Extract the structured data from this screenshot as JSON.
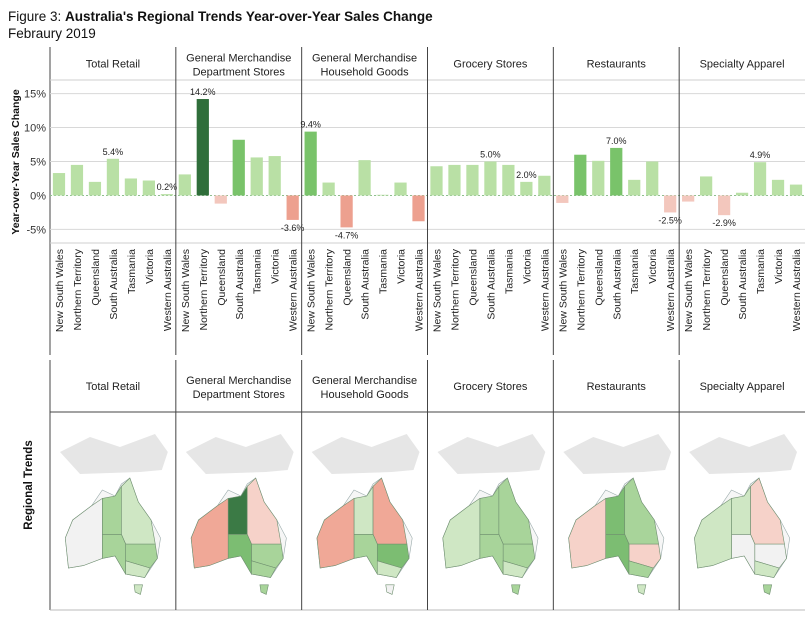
{
  "title": {
    "prefix": "Figure 3:",
    "main": "Australia's Regional Trends Year-over-Year Sales Change",
    "subtitle": "Febraury 2019"
  },
  "colors": {
    "positive_light": "#b9e0a5",
    "positive_mid": "#79c36a",
    "positive_dark": "#2f6e3a",
    "negative_light": "#f3c7bd",
    "negative_mid": "#eda08f",
    "neutral": "#f0f0f0",
    "map_background": "#e6e6e6",
    "grid": "#d8d8d8"
  },
  "chart_data": {
    "type": "bar",
    "ylabel": "Year-over-Year Sales Change",
    "ylim": [
      -7,
      17
    ],
    "yticks": [
      -5,
      0,
      5,
      10,
      15
    ],
    "ytick_labels": [
      "-5%",
      "0%",
      "5%",
      "10%",
      "15%"
    ],
    "categories": [
      "New South Wales",
      "Northern Territory",
      "Queensland",
      "South Australia",
      "Tasmania",
      "Victoria",
      "Western Australia"
    ],
    "panels": [
      {
        "name": "Total Retail",
        "values": [
          3.3,
          4.5,
          2.0,
          5.4,
          2.5,
          2.2,
          0.2
        ],
        "labels": [
          "",
          "",
          "",
          "5.4%",
          "",
          "",
          "0.2%"
        ]
      },
      {
        "name": "General Merchandise Department Stores",
        "values": [
          3.1,
          14.2,
          -1.2,
          8.2,
          5.6,
          5.8,
          -3.6
        ],
        "labels": [
          "",
          "14.2%",
          "",
          "",
          "",
          "",
          "-3.6%"
        ]
      },
      {
        "name": "General Merchandise Household Goods",
        "values": [
          9.4,
          1.9,
          -4.7,
          5.2,
          0.1,
          1.9,
          -3.8
        ],
        "labels": [
          "9.4%",
          "",
          "-4.7%",
          "",
          "",
          "",
          ""
        ]
      },
      {
        "name": "Grocery Stores",
        "values": [
          4.3,
          4.5,
          4.5,
          5.0,
          4.5,
          2.0,
          2.9
        ],
        "labels": [
          "",
          "",
          "",
          "5.0%",
          "",
          "2.0%",
          ""
        ]
      },
      {
        "name": "Restaurants",
        "values": [
          -1.1,
          6.0,
          5.1,
          7.0,
          2.3,
          5.0,
          -2.5
        ],
        "labels": [
          "",
          "",
          "",
          "7.0%",
          "",
          "",
          "-2.5%"
        ]
      },
      {
        "name": "Specialty Apparel",
        "values": [
          -0.9,
          2.8,
          -2.9,
          0.4,
          4.9,
          2.3,
          1.6
        ],
        "labels": [
          "",
          "",
          "-2.9%",
          "",
          "4.9%",
          "",
          ""
        ]
      }
    ]
  },
  "panel_headers": [
    {
      "line1": "Total Retail",
      "line2": ""
    },
    {
      "line1": "General Merchandise",
      "line2": "Department Stores"
    },
    {
      "line1": "General Merchandise",
      "line2": "Household Goods"
    },
    {
      "line1": "Grocery Stores",
      "line2": ""
    },
    {
      "line1": "Restaurants",
      "line2": ""
    },
    {
      "line1": "Specialty Apparel",
      "line2": ""
    }
  ],
  "map_section": {
    "row_label": "Regional Trends"
  }
}
